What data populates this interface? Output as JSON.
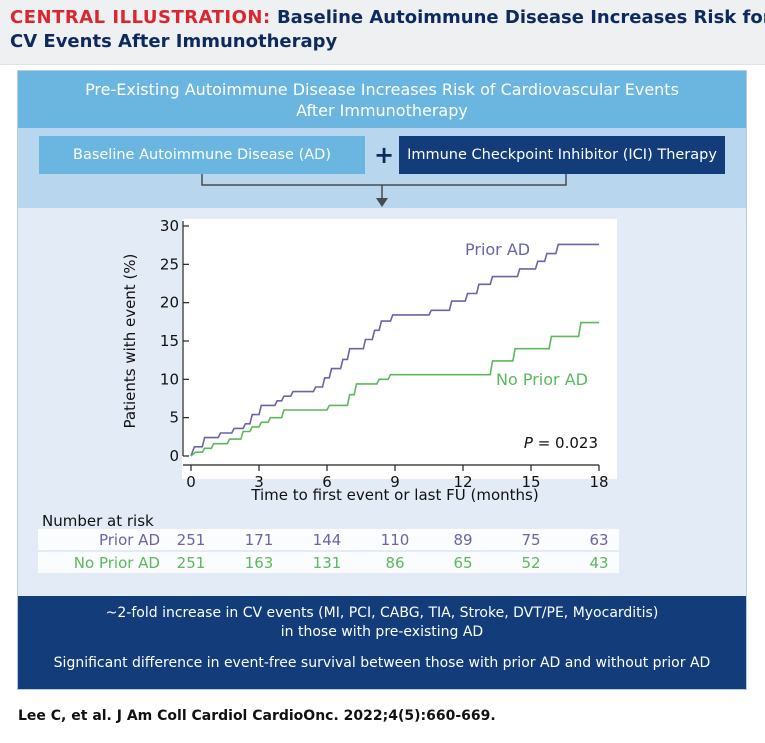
{
  "header": {
    "label": "CENTRAL ILLUSTRATION:",
    "title_part1": "Baseline Autoimmune Disease Increases Risk for",
    "title_part2": "CV Events After Immunotherapy"
  },
  "banner": {
    "line1": "Pre-Existing Autoimmune Disease Increases Risk of Cardiovascular Events",
    "line2": "After Immunotherapy"
  },
  "boxes": {
    "ad_label": "Baseline Autoimmune Disease (AD)",
    "plus": "+",
    "ici_label": "Immune Checkpoint Inhibitor (ICI) Therapy"
  },
  "chart_data": {
    "type": "line",
    "step": true,
    "title": "",
    "xlabel": "Time to first event or last FU (months)",
    "ylabel": "Patients with event (%)",
    "xlim": [
      0,
      18
    ],
    "ylim": [
      0,
      30
    ],
    "xticks": [
      0,
      3,
      6,
      9,
      12,
      15,
      18
    ],
    "yticks": [
      0,
      5,
      10,
      15,
      20,
      25,
      30
    ],
    "series": [
      {
        "name": "Prior AD",
        "color": "#6a64a6",
        "points": [
          [
            0,
            0
          ],
          [
            0.15,
            1.2
          ],
          [
            0.5,
            1.2
          ],
          [
            0.6,
            2.4
          ],
          [
            1.2,
            2.4
          ],
          [
            1.3,
            3.0
          ],
          [
            1.8,
            3.0
          ],
          [
            1.9,
            3.6
          ],
          [
            2.3,
            3.6
          ],
          [
            2.4,
            4.2
          ],
          [
            2.6,
            4.2
          ],
          [
            2.7,
            5.4
          ],
          [
            3.0,
            5.4
          ],
          [
            3.1,
            6.6
          ],
          [
            3.7,
            6.6
          ],
          [
            3.8,
            7.2
          ],
          [
            4.0,
            7.2
          ],
          [
            4.1,
            7.8
          ],
          [
            4.4,
            7.8
          ],
          [
            4.5,
            8.4
          ],
          [
            5.4,
            8.4
          ],
          [
            5.5,
            9.0
          ],
          [
            5.8,
            9.0
          ],
          [
            5.9,
            10.2
          ],
          [
            6.1,
            10.2
          ],
          [
            6.2,
            11.4
          ],
          [
            6.6,
            11.4
          ],
          [
            6.7,
            12.6
          ],
          [
            6.9,
            12.6
          ],
          [
            7.0,
            14.0
          ],
          [
            7.6,
            14.0
          ],
          [
            7.7,
            15.2
          ],
          [
            8.0,
            15.2
          ],
          [
            8.1,
            16.4
          ],
          [
            8.3,
            16.4
          ],
          [
            8.4,
            17.6
          ],
          [
            8.8,
            17.6
          ],
          [
            8.9,
            18.4
          ],
          [
            10.5,
            18.4
          ],
          [
            10.6,
            19.0
          ],
          [
            11.4,
            19.0
          ],
          [
            11.5,
            20.2
          ],
          [
            12.1,
            20.2
          ],
          [
            12.2,
            21.2
          ],
          [
            12.6,
            21.2
          ],
          [
            12.7,
            22.4
          ],
          [
            13.2,
            22.4
          ],
          [
            13.3,
            23.4
          ],
          [
            14.4,
            23.4
          ],
          [
            14.5,
            24.4
          ],
          [
            15.2,
            24.4
          ],
          [
            15.3,
            25.4
          ],
          [
            15.6,
            25.4
          ],
          [
            15.7,
            26.4
          ],
          [
            16.1,
            26.4
          ],
          [
            16.2,
            27.6
          ],
          [
            18.0,
            27.6
          ]
        ],
        "label_text": "Prior AD"
      },
      {
        "name": "No Prior AD",
        "color": "#5cb85c",
        "points": [
          [
            0,
            0
          ],
          [
            0.2,
            0.5
          ],
          [
            0.5,
            0.5
          ],
          [
            0.6,
            1.0
          ],
          [
            0.9,
            1.0
          ],
          [
            1.0,
            1.6
          ],
          [
            1.6,
            1.6
          ],
          [
            1.7,
            2.2
          ],
          [
            2.2,
            2.2
          ],
          [
            2.3,
            3.2
          ],
          [
            2.6,
            3.2
          ],
          [
            2.7,
            3.8
          ],
          [
            3.0,
            3.8
          ],
          [
            3.1,
            4.4
          ],
          [
            3.4,
            4.4
          ],
          [
            3.5,
            5.0
          ],
          [
            4.0,
            5.0
          ],
          [
            4.1,
            6.0
          ],
          [
            6.0,
            6.0
          ],
          [
            6.1,
            6.6
          ],
          [
            6.9,
            6.6
          ],
          [
            7.0,
            8.0
          ],
          [
            7.2,
            8.0
          ],
          [
            7.3,
            9.4
          ],
          [
            8.2,
            9.4
          ],
          [
            8.3,
            10.0
          ],
          [
            8.7,
            10.0
          ],
          [
            8.8,
            10.6
          ],
          [
            13.2,
            10.6
          ],
          [
            13.3,
            12.4
          ],
          [
            14.2,
            12.4
          ],
          [
            14.3,
            14.0
          ],
          [
            15.8,
            14.0
          ],
          [
            15.9,
            15.6
          ],
          [
            17.1,
            15.6
          ],
          [
            17.2,
            17.4
          ],
          [
            18.0,
            17.4
          ]
        ],
        "label_text": "No Prior AD"
      }
    ],
    "annotation": "P = 0.023",
    "annotation_p": "P",
    "annotation_rest": " = 0.023",
    "risk_table": {
      "title": "Number at risk",
      "rows": [
        {
          "label": "Prior AD",
          "color": "#6a64a6",
          "values": [
            251,
            171,
            144,
            110,
            89,
            75,
            63
          ]
        },
        {
          "label": "No Prior AD",
          "color": "#5cb85c",
          "values": [
            251,
            163,
            131,
            86,
            65,
            52,
            43
          ]
        }
      ]
    }
  },
  "conclusions": {
    "line1": "~2-fold increase in CV events (MI, PCI, CABG, TIA, Stroke, DVT/PE, Myocarditis)",
    "line2": "in those with pre-existing AD",
    "line3": "Significant difference in event-free survival between those with prior AD and without prior AD"
  },
  "citation": "Lee C, et al. J Am Coll Cardiol CardioOnc. 2022;4(5):660-669."
}
